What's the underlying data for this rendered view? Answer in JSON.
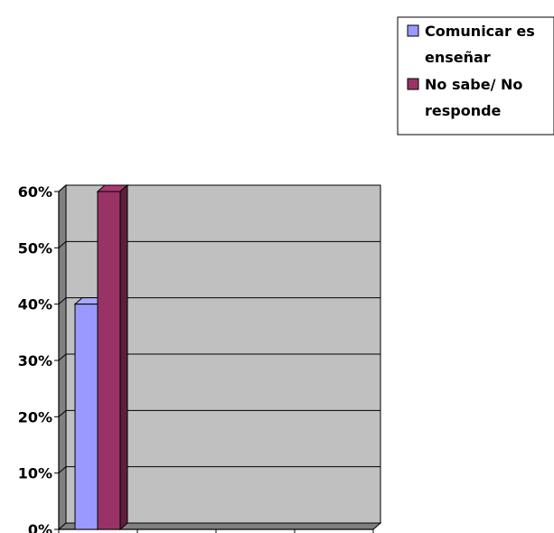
{
  "chart_data": {
    "type": "bar",
    "categories": [
      ""
    ],
    "series": [
      {
        "name": "Comunicar es enseñar",
        "values": [
          40
        ],
        "color": "#9999ff"
      },
      {
        "name": "No sabe/ No responde",
        "values": [
          60
        ],
        "color": "#993366"
      }
    ],
    "yticks": [
      "0%",
      "10%",
      "20%",
      "30%",
      "40%",
      "50%",
      "60%"
    ],
    "ylim": [
      0,
      60
    ],
    "grid": true,
    "legend": "top-right",
    "title": "",
    "xlabel": "",
    "ylabel": ""
  },
  "legend": {
    "lines": [
      [
        "Comunicar es",
        "enseñar"
      ],
      [
        "No sabe/ No",
        "responde"
      ]
    ]
  }
}
